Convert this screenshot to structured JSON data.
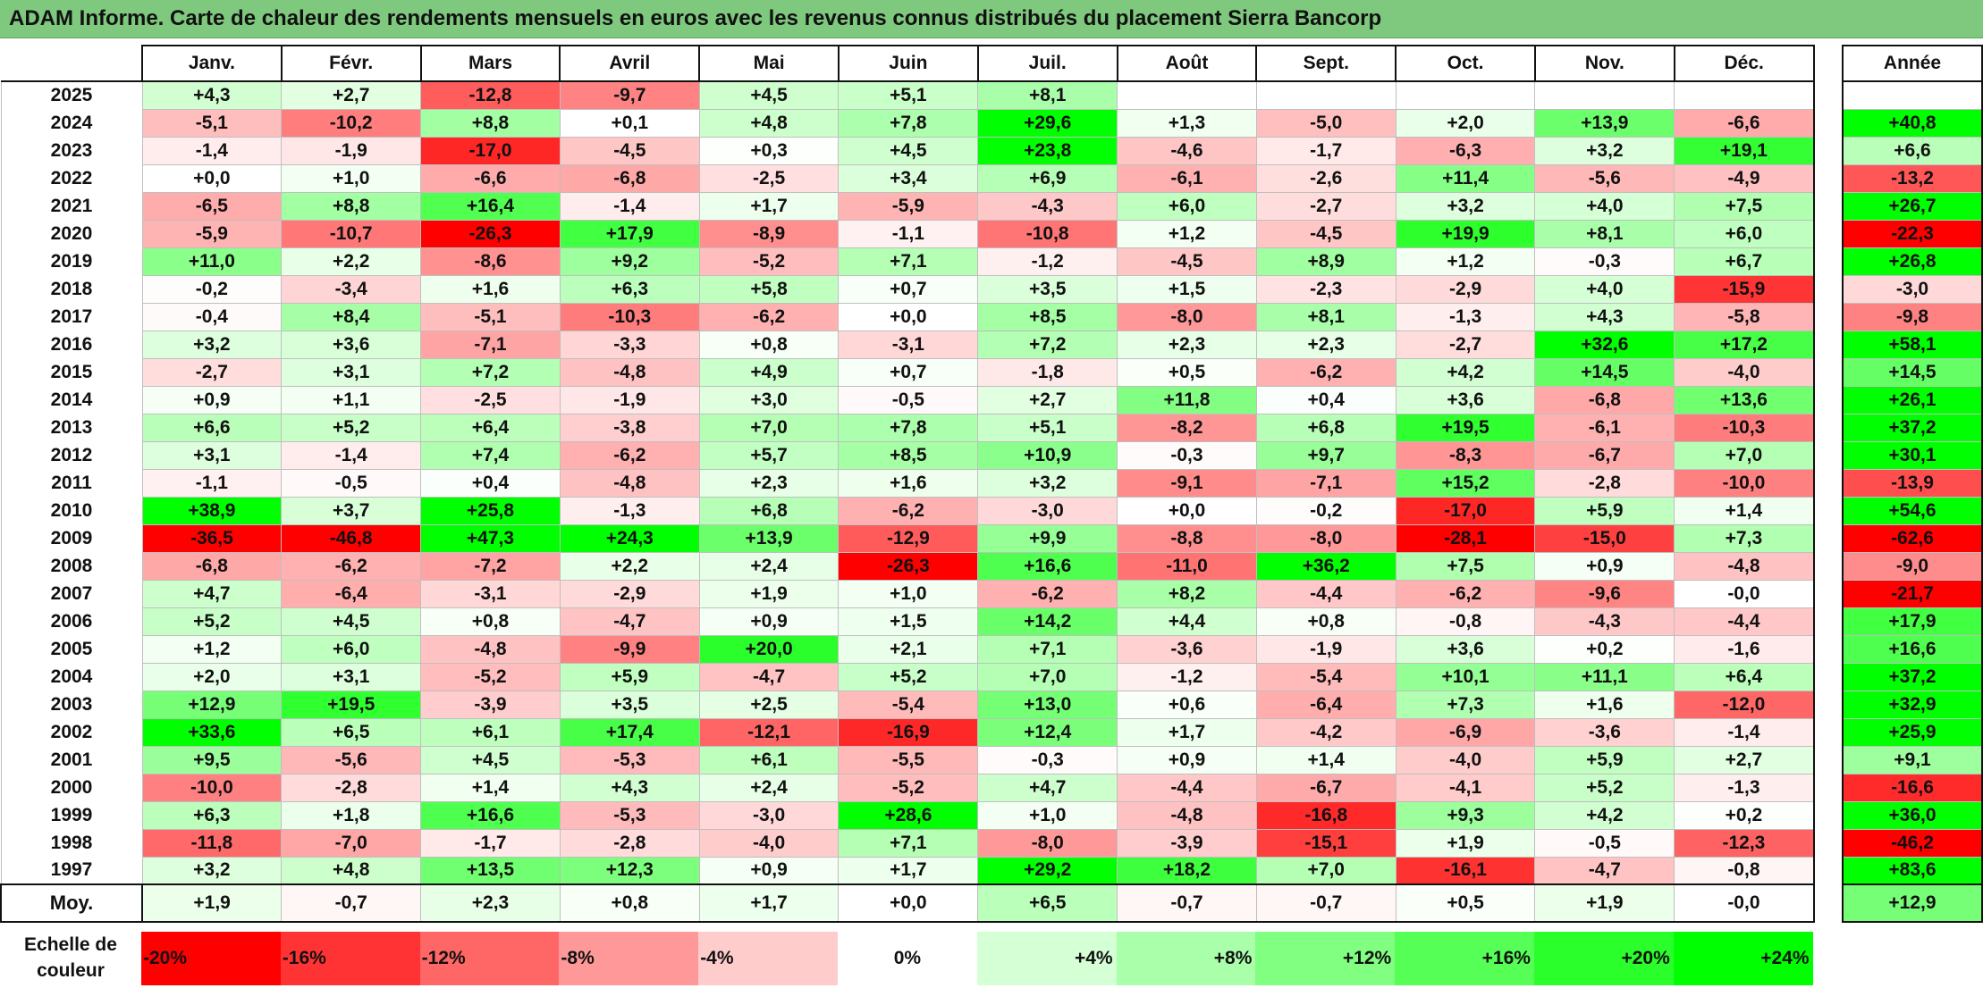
{
  "title": "ADAM Informe. Carte de chaleur des rendements mensuels en euros avec les revenus connus distribués du placement Sierra Bancorp",
  "chart_data": {
    "type": "heatmap",
    "title": "ADAM Informe. Carte de chaleur des rendements mensuels en euros avec les revenus connus distribués du placement Sierra Bancorp",
    "columns": [
      "Janv.",
      "Févr.",
      "Mars",
      "Avril",
      "Mai",
      "Juin",
      "Juil.",
      "Août",
      "Sept.",
      "Oct.",
      "Nov.",
      "Déc."
    ],
    "annual_header": "Année",
    "rows": [
      {
        "year": "2025",
        "values": [
          "+4,3",
          "+2,7",
          "-12,8",
          "-9,7",
          "+4,5",
          "+5,1",
          "+8,1",
          "",
          "",
          "",
          "",
          ""
        ],
        "annual": ""
      },
      {
        "year": "2024",
        "values": [
          "-5,1",
          "-10,2",
          "+8,8",
          "+0,1",
          "+4,8",
          "+7,8",
          "+29,6",
          "+1,3",
          "-5,0",
          "+2,0",
          "+13,9",
          "-6,6"
        ],
        "annual": "+40,8"
      },
      {
        "year": "2023",
        "values": [
          "-1,4",
          "-1,9",
          "-17,0",
          "-4,5",
          "+0,3",
          "+4,5",
          "+23,8",
          "-4,6",
          "-1,7",
          "-6,3",
          "+3,2",
          "+19,1"
        ],
        "annual": "+6,6"
      },
      {
        "year": "2022",
        "values": [
          "+0,0",
          "+1,0",
          "-6,6",
          "-6,8",
          "-2,5",
          "+3,4",
          "+6,9",
          "-6,1",
          "-2,6",
          "+11,4",
          "-5,6",
          "-4,9"
        ],
        "annual": "-13,2"
      },
      {
        "year": "2021",
        "values": [
          "-6,5",
          "+8,8",
          "+16,4",
          "-1,4",
          "+1,7",
          "-5,9",
          "-4,3",
          "+6,0",
          "-2,7",
          "+3,2",
          "+4,0",
          "+7,5"
        ],
        "annual": "+26,7"
      },
      {
        "year": "2020",
        "values": [
          "-5,9",
          "-10,7",
          "-26,3",
          "+17,9",
          "-8,9",
          "-1,1",
          "-10,8",
          "+1,2",
          "-4,5",
          "+19,9",
          "+8,1",
          "+6,0"
        ],
        "annual": "-22,3"
      },
      {
        "year": "2019",
        "values": [
          "+11,0",
          "+2,2",
          "-8,6",
          "+9,2",
          "-5,2",
          "+7,1",
          "-1,2",
          "-4,5",
          "+8,9",
          "+1,2",
          "-0,3",
          "+6,7"
        ],
        "annual": "+26,8"
      },
      {
        "year": "2018",
        "values": [
          "-0,2",
          "-3,4",
          "+1,6",
          "+6,3",
          "+5,8",
          "+0,7",
          "+3,5",
          "+1,5",
          "-2,3",
          "-2,9",
          "+4,0",
          "-15,9"
        ],
        "annual": "-3,0"
      },
      {
        "year": "2017",
        "values": [
          "-0,4",
          "+8,4",
          "-5,1",
          "-10,3",
          "-6,2",
          "+0,0",
          "+8,5",
          "-8,0",
          "+8,1",
          "-1,3",
          "+4,3",
          "-5,8"
        ],
        "annual": "-9,8"
      },
      {
        "year": "2016",
        "values": [
          "+3,2",
          "+3,6",
          "-7,1",
          "-3,3",
          "+0,8",
          "-3,1",
          "+7,2",
          "+2,3",
          "+2,3",
          "-2,7",
          "+32,6",
          "+17,2"
        ],
        "annual": "+58,1"
      },
      {
        "year": "2015",
        "values": [
          "-2,7",
          "+3,1",
          "+7,2",
          "-4,8",
          "+4,9",
          "+0,7",
          "-1,8",
          "+0,5",
          "-6,2",
          "+4,2",
          "+14,5",
          "-4,0"
        ],
        "annual": "+14,5"
      },
      {
        "year": "2014",
        "values": [
          "+0,9",
          "+1,1",
          "-2,5",
          "-1,9",
          "+3,0",
          "-0,5",
          "+2,7",
          "+11,8",
          "+0,4",
          "+3,6",
          "-6,8",
          "+13,6"
        ],
        "annual": "+26,1"
      },
      {
        "year": "2013",
        "values": [
          "+6,6",
          "+5,2",
          "+6,4",
          "-3,8",
          "+7,0",
          "+7,8",
          "+5,1",
          "-8,2",
          "+6,8",
          "+19,5",
          "-6,1",
          "-10,3"
        ],
        "annual": "+37,2"
      },
      {
        "year": "2012",
        "values": [
          "+3,1",
          "-1,4",
          "+7,4",
          "-6,2",
          "+5,7",
          "+8,5",
          "+10,9",
          "-0,3",
          "+9,7",
          "-8,3",
          "-6,7",
          "+7,0"
        ],
        "annual": "+30,1"
      },
      {
        "year": "2011",
        "values": [
          "-1,1",
          "-0,5",
          "+0,4",
          "-4,8",
          "+2,3",
          "+1,6",
          "+3,2",
          "-9,1",
          "-7,1",
          "+15,2",
          "-2,8",
          "-10,0"
        ],
        "annual": "-13,9"
      },
      {
        "year": "2010",
        "values": [
          "+38,9",
          "+3,7",
          "+25,8",
          "-1,3",
          "+6,8",
          "-6,2",
          "-3,0",
          "+0,0",
          "-0,2",
          "-17,0",
          "+5,9",
          "+1,4"
        ],
        "annual": "+54,6"
      },
      {
        "year": "2009",
        "values": [
          "-36,5",
          "-46,8",
          "+47,3",
          "+24,3",
          "+13,9",
          "-12,9",
          "+9,9",
          "-8,8",
          "-8,0",
          "-28,1",
          "-15,0",
          "+7,3"
        ],
        "annual": "-62,6"
      },
      {
        "year": "2008",
        "values": [
          "-6,8",
          "-6,2",
          "-7,2",
          "+2,2",
          "+2,4",
          "-26,3",
          "+16,6",
          "-11,0",
          "+36,2",
          "+7,5",
          "+0,9",
          "-4,8"
        ],
        "annual": "-9,0"
      },
      {
        "year": "2007",
        "values": [
          "+4,7",
          "-6,4",
          "-3,1",
          "-2,9",
          "+1,9",
          "+1,0",
          "-6,2",
          "+8,2",
          "-4,4",
          "-6,2",
          "-9,6",
          "-0,0"
        ],
        "annual": "-21,7"
      },
      {
        "year": "2006",
        "values": [
          "+5,2",
          "+4,5",
          "+0,8",
          "-4,7",
          "+0,9",
          "+1,5",
          "+14,2",
          "+4,4",
          "+0,8",
          "-0,8",
          "-4,3",
          "-4,4"
        ],
        "annual": "+17,9"
      },
      {
        "year": "2005",
        "values": [
          "+1,2",
          "+6,0",
          "-4,8",
          "-9,9",
          "+20,0",
          "+2,1",
          "+7,1",
          "-3,6",
          "-1,9",
          "+3,6",
          "+0,2",
          "-1,6"
        ],
        "annual": "+16,6"
      },
      {
        "year": "2004",
        "values": [
          "+2,0",
          "+3,1",
          "-5,2",
          "+5,9",
          "-4,7",
          "+5,2",
          "+7,0",
          "-1,2",
          "-5,4",
          "+10,1",
          "+11,1",
          "+6,4"
        ],
        "annual": "+37,2"
      },
      {
        "year": "2003",
        "values": [
          "+12,9",
          "+19,5",
          "-3,9",
          "+3,5",
          "+2,5",
          "-5,4",
          "+13,0",
          "+0,6",
          "-6,4",
          "+7,3",
          "+1,6",
          "-12,0"
        ],
        "annual": "+32,9"
      },
      {
        "year": "2002",
        "values": [
          "+33,6",
          "+6,5",
          "+6,1",
          "+17,4",
          "-12,1",
          "-16,9",
          "+12,4",
          "+1,7",
          "-4,2",
          "-6,9",
          "-3,6",
          "-1,4"
        ],
        "annual": "+25,9"
      },
      {
        "year": "2001",
        "values": [
          "+9,5",
          "-5,6",
          "+4,5",
          "-5,3",
          "+6,1",
          "-5,5",
          "-0,3",
          "+0,9",
          "+1,4",
          "-4,0",
          "+5,9",
          "+2,7"
        ],
        "annual": "+9,1"
      },
      {
        "year": "2000",
        "values": [
          "-10,0",
          "-2,8",
          "+1,4",
          "+4,3",
          "+2,4",
          "-5,2",
          "+4,7",
          "-4,4",
          "-6,7",
          "-4,1",
          "+5,2",
          "-1,3"
        ],
        "annual": "-16,6"
      },
      {
        "year": "1999",
        "values": [
          "+6,3",
          "+1,8",
          "+16,6",
          "-5,3",
          "-3,0",
          "+28,6",
          "+1,0",
          "-4,8",
          "-16,8",
          "+9,3",
          "+4,2",
          "+0,2"
        ],
        "annual": "+36,0"
      },
      {
        "year": "1998",
        "values": [
          "-11,8",
          "-7,0",
          "-1,7",
          "-2,8",
          "-4,0",
          "+7,1",
          "-8,0",
          "-3,9",
          "-15,1",
          "+1,9",
          "-0,5",
          "-12,3"
        ],
        "annual": "-46,2"
      },
      {
        "year": "1997",
        "values": [
          "+3,2",
          "+4,8",
          "+13,5",
          "+12,3",
          "+0,9",
          "+1,7",
          "+29,2",
          "+18,2",
          "+7,0",
          "-16,1",
          "-4,7",
          "-0,8"
        ],
        "annual": "+83,6"
      }
    ],
    "average": {
      "label": "Moy.",
      "values": [
        "+1,9",
        "-0,7",
        "+2,3",
        "+0,8",
        "+1,7",
        "+0,0",
        "+6,5",
        "-0,7",
        "-0,7",
        "+0,5",
        "+1,9",
        "-0,0"
      ],
      "annual": "+12,9"
    },
    "scale": {
      "label_line1": "Echelle de",
      "label_line2": "couleur",
      "stops": [
        "-20%",
        "-16%",
        "-12%",
        "-8%",
        "-4%",
        "0%",
        "+4%",
        "+8%",
        "+12%",
        "+16%",
        "+20%",
        "+24%"
      ]
    },
    "colors": {
      "negative": "#ff0000",
      "neutral": "#ffffff",
      "positive": "#00ff00"
    },
    "color_range": [
      -20,
      24
    ]
  }
}
